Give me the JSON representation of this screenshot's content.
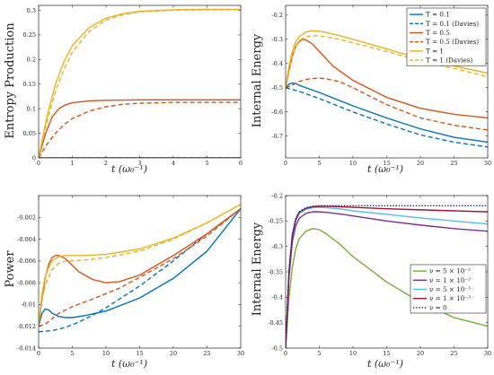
{
  "chart_data": [
    {
      "type": "line",
      "ylabel": "Entropy Production",
      "xlabel": "t (ω₀⁻¹)",
      "xlim": [
        0,
        6
      ],
      "ylim": [
        0,
        0.31
      ],
      "xticks": [
        0,
        1,
        2,
        3,
        4,
        5,
        6
      ],
      "xtick_labels": [
        "0",
        "1",
        "2",
        "3",
        "4",
        "5",
        "6"
      ],
      "yticks": [
        0,
        0.05,
        0.1,
        0.15,
        0.2,
        0.25,
        0.3
      ],
      "ytick_labels": [
        "0",
        "0.05",
        "0.1",
        "0.15",
        "0.2",
        "0.25",
        "0.3"
      ],
      "grid": false,
      "series": [
        {
          "color": "#0072bd",
          "dash": false,
          "x": [
            0,
            1,
            2,
            3,
            4,
            5,
            6
          ],
          "y": [
            0,
            0,
            0,
            0,
            0,
            0,
            0
          ]
        },
        {
          "color": "#0072bd",
          "dash": true,
          "x": [
            0,
            1,
            2,
            3,
            4,
            5,
            6
          ],
          "y": [
            0,
            0,
            0,
            0,
            0,
            0,
            0
          ]
        },
        {
          "color": "#d95319",
          "dash": false,
          "x": [
            0,
            0.2,
            0.4,
            0.6,
            0.8,
            1,
            1.5,
            2,
            3,
            4,
            5,
            6
          ],
          "y": [
            0,
            0.048,
            0.083,
            0.1,
            0.108,
            0.112,
            0.116,
            0.117,
            0.118,
            0.118,
            0.118,
            0.118
          ]
        },
        {
          "color": "#d95319",
          "dash": true,
          "x": [
            0,
            0.25,
            0.5,
            0.75,
            1,
            1.5,
            2,
            2.5,
            3,
            4,
            5,
            6
          ],
          "y": [
            0,
            0.028,
            0.05,
            0.067,
            0.08,
            0.095,
            0.104,
            0.109,
            0.111,
            0.113,
            0.113,
            0.113
          ]
        },
        {
          "color": "#edb120",
          "dash": false,
          "x": [
            0,
            0.25,
            0.5,
            0.75,
            1,
            1.5,
            2,
            2.5,
            3,
            4,
            5,
            6
          ],
          "y": [
            0,
            0.085,
            0.15,
            0.195,
            0.228,
            0.265,
            0.284,
            0.293,
            0.298,
            0.301,
            0.302,
            0.302
          ]
        },
        {
          "color": "#edb120",
          "dash": true,
          "x": [
            0,
            0.25,
            0.5,
            0.75,
            1,
            1.5,
            2,
            2.5,
            3,
            4,
            5,
            6
          ],
          "y": [
            0,
            0.075,
            0.135,
            0.18,
            0.215,
            0.257,
            0.28,
            0.291,
            0.297,
            0.3,
            0.301,
            0.301
          ]
        }
      ]
    },
    {
      "type": "line",
      "ylabel": "Internal Energy",
      "xlabel": "t (ω₀⁻¹)",
      "xlim": [
        0,
        30
      ],
      "ylim": [
        -0.79,
        -0.16
      ],
      "xticks": [
        0,
        5,
        10,
        15,
        20,
        25,
        30
      ],
      "xtick_labels": [
        "0",
        "5",
        "10",
        "15",
        "20",
        "25",
        "30"
      ],
      "yticks": [
        -0.7,
        -0.6,
        -0.5,
        -0.4,
        -0.3,
        -0.2
      ],
      "ytick_labels": [
        "-0.7",
        "-0.6",
        "-0.5",
        "-0.4",
        "-0.3",
        "-0.2"
      ],
      "grid": false,
      "legend": {
        "position": "top-right",
        "entries": [
          "T = 0.1",
          "T = 0.1 (Davies)",
          "T = 0.5",
          "T = 0.5 (Davies)",
          "T = 1",
          "T = 1 (Davies)"
        ]
      },
      "series": [
        {
          "name": "T = 0.1",
          "color": "#0072bd",
          "dash": false,
          "x": [
            0,
            0.5,
            1,
            1.5,
            2,
            3,
            5,
            10,
            15,
            20,
            25,
            30
          ],
          "y": [
            -0.5,
            -0.485,
            -0.481,
            -0.483,
            -0.49,
            -0.5,
            -0.52,
            -0.575,
            -0.625,
            -0.67,
            -0.705,
            -0.725
          ]
        },
        {
          "name": "T = 0.1 (Davies)",
          "color": "#0072bd",
          "dash": true,
          "x": [
            0,
            2,
            5,
            10,
            15,
            20,
            25,
            30
          ],
          "y": [
            -0.5,
            -0.515,
            -0.545,
            -0.6,
            -0.65,
            -0.695,
            -0.725,
            -0.745
          ]
        },
        {
          "name": "T = 0.5",
          "color": "#d95319",
          "dash": false,
          "x": [
            0,
            0.5,
            1,
            1.5,
            2,
            2.5,
            3,
            4,
            5,
            7,
            10,
            15,
            20,
            25,
            30
          ],
          "y": [
            -0.5,
            -0.43,
            -0.37,
            -0.33,
            -0.31,
            -0.3,
            -0.302,
            -0.32,
            -0.35,
            -0.41,
            -0.47,
            -0.54,
            -0.585,
            -0.61,
            -0.625
          ]
        },
        {
          "name": "T = 0.5 (Davies)",
          "color": "#d95319",
          "dash": true,
          "x": [
            0,
            1,
            2,
            3,
            4,
            5,
            6,
            8,
            10,
            15,
            20,
            25,
            30
          ],
          "y": [
            -0.5,
            -0.49,
            -0.475,
            -0.466,
            -0.462,
            -0.461,
            -0.463,
            -0.475,
            -0.5,
            -0.57,
            -0.625,
            -0.655,
            -0.675
          ]
        },
        {
          "name": "T = 1",
          "color": "#edb120",
          "dash": false,
          "x": [
            0,
            0.5,
            1,
            1.5,
            2,
            3,
            4,
            5,
            6,
            8,
            10,
            15,
            20,
            25,
            30
          ],
          "y": [
            -0.5,
            -0.41,
            -0.35,
            -0.31,
            -0.29,
            -0.27,
            -0.265,
            -0.267,
            -0.272,
            -0.285,
            -0.3,
            -0.34,
            -0.38,
            -0.41,
            -0.44
          ]
        },
        {
          "name": "T = 1 (Davies)",
          "color": "#edb120",
          "dash": true,
          "x": [
            0,
            0.5,
            1,
            1.5,
            2,
            3,
            4,
            5,
            6,
            8,
            10,
            15,
            20,
            25,
            30
          ],
          "y": [
            -0.5,
            -0.43,
            -0.37,
            -0.33,
            -0.305,
            -0.29,
            -0.285,
            -0.286,
            -0.29,
            -0.3,
            -0.315,
            -0.35,
            -0.39,
            -0.42,
            -0.455
          ]
        }
      ]
    },
    {
      "type": "line",
      "ylabel": "Power",
      "xlabel": "t (ω₀⁻¹)",
      "xlim": [
        0,
        30
      ],
      "ylim": [
        -0.014,
        0
      ],
      "xticks": [
        0,
        5,
        10,
        15,
        20,
        25,
        30
      ],
      "xtick_labels": [
        "0",
        "5",
        "10",
        "15",
        "20",
        "25",
        "30"
      ],
      "yticks": [
        -0.014,
        -0.012,
        -0.01,
        -0.008,
        -0.006,
        -0.004,
        -0.002
      ],
      "ytick_labels": [
        "-0.014",
        "-0.012",
        "-0.01",
        "-0.008",
        "-0.006",
        "-0.004",
        "-0.002"
      ],
      "grid": false,
      "series": [
        {
          "color": "#0072bd",
          "dash": false,
          "x": [
            0,
            0.5,
            1,
            1.5,
            2,
            3,
            4,
            5,
            7,
            10,
            15,
            20,
            25,
            30
          ],
          "y": [
            -0.012,
            -0.0108,
            -0.0104,
            -0.0105,
            -0.0108,
            -0.0111,
            -0.0112,
            -0.0112,
            -0.011,
            -0.0106,
            -0.0094,
            -0.0076,
            -0.0051,
            -0.0012
          ]
        },
        {
          "color": "#0072bd",
          "dash": true,
          "x": [
            0,
            2,
            4,
            6,
            8,
            10,
            15,
            20,
            25,
            30
          ],
          "y": [
            -0.0125,
            -0.0124,
            -0.0121,
            -0.0116,
            -0.011,
            -0.0103,
            -0.0083,
            -0.006,
            -0.0035,
            -0.0012
          ]
        },
        {
          "color": "#d95319",
          "dash": false,
          "x": [
            0,
            0.5,
            1,
            1.5,
            2,
            2.5,
            3,
            4,
            5,
            6,
            8,
            10,
            12,
            15,
            20,
            25,
            30
          ],
          "y": [
            -0.012,
            -0.0095,
            -0.0075,
            -0.0063,
            -0.0057,
            -0.0055,
            -0.0055,
            -0.0058,
            -0.0064,
            -0.007,
            -0.0077,
            -0.008,
            -0.0079,
            -0.0073,
            -0.0055,
            -0.0035,
            -0.0012
          ]
        },
        {
          "color": "#d95319",
          "dash": true,
          "x": [
            0,
            1,
            2,
            3,
            5,
            8,
            10,
            12,
            15,
            20,
            25,
            30
          ],
          "y": [
            -0.012,
            -0.0118,
            -0.0113,
            -0.0108,
            -0.0102,
            -0.0095,
            -0.009,
            -0.0085,
            -0.0075,
            -0.0058,
            -0.0037,
            -0.0012
          ]
        },
        {
          "color": "#edb120",
          "dash": false,
          "x": [
            0,
            0.5,
            1,
            1.5,
            2,
            3,
            4,
            5,
            7,
            10,
            15,
            20,
            25,
            30
          ],
          "y": [
            -0.012,
            -0.009,
            -0.0074,
            -0.0066,
            -0.006,
            -0.0056,
            -0.0055,
            -0.0055,
            -0.0055,
            -0.0054,
            -0.0049,
            -0.0039,
            -0.0025,
            -0.0008
          ]
        },
        {
          "color": "#edb120",
          "dash": true,
          "x": [
            0,
            0.5,
            1,
            1.5,
            2,
            3,
            4,
            5,
            7,
            10,
            15,
            20,
            25,
            30
          ],
          "y": [
            -0.012,
            -0.0095,
            -0.0082,
            -0.0075,
            -0.0068,
            -0.0062,
            -0.006,
            -0.006,
            -0.0059,
            -0.0057,
            -0.0051,
            -0.004,
            -0.0025,
            -0.0008
          ]
        }
      ]
    },
    {
      "type": "line",
      "ylabel": "Internal Energy",
      "xlabel": "t (ω₀⁻¹)",
      "xlim": [
        0,
        30
      ],
      "ylim": [
        -0.5,
        -0.2
      ],
      "xticks": [
        0,
        5,
        10,
        15,
        20,
        25,
        30
      ],
      "xtick_labels": [
        "0",
        "5",
        "10",
        "15",
        "20",
        "25",
        "30"
      ],
      "yticks": [
        -0.5,
        -0.45,
        -0.4,
        -0.35,
        -0.3,
        -0.25,
        -0.2
      ],
      "ytick_labels": [
        "-0.5",
        "-0.45",
        "-0.4",
        "-0.35",
        "-0.3",
        "-0.25",
        "-0.2"
      ],
      "grid": false,
      "legend": {
        "position": "bottom-right",
        "entries": [
          "ν = 5 × 10⁻²",
          "ν = 1 × 10⁻²",
          "ν = 5 × 10⁻³",
          "ν = 1 × 10⁻³",
          "ν = 0"
        ]
      },
      "series": [
        {
          "name": "ν = 5 × 10⁻²",
          "color": "#77ac30",
          "dash": false,
          "x": [
            0,
            0.5,
            1,
            1.5,
            2,
            3,
            4,
            5,
            6,
            8,
            10,
            15,
            20,
            25,
            30
          ],
          "y": [
            -0.5,
            -0.4,
            -0.34,
            -0.305,
            -0.285,
            -0.27,
            -0.265,
            -0.267,
            -0.275,
            -0.295,
            -0.32,
            -0.37,
            -0.41,
            -0.44,
            -0.457
          ]
        },
        {
          "name": "ν = 1 × 10⁻²",
          "color": "#7e2f8e",
          "dash": false,
          "x": [
            0,
            0.5,
            1,
            1.5,
            2,
            3,
            4,
            5,
            6,
            8,
            10,
            15,
            20,
            25,
            30
          ],
          "y": [
            -0.5,
            -0.36,
            -0.29,
            -0.26,
            -0.245,
            -0.235,
            -0.232,
            -0.232,
            -0.233,
            -0.236,
            -0.24,
            -0.25,
            -0.258,
            -0.265,
            -0.27
          ]
        },
        {
          "name": "ν = 5 × 10⁻³",
          "color": "#4dbeee",
          "dash": false,
          "x": [
            0,
            0.5,
            1,
            1.5,
            2,
            3,
            4,
            5,
            6,
            8,
            10,
            15,
            20,
            25,
            30
          ],
          "y": [
            -0.5,
            -0.35,
            -0.28,
            -0.25,
            -0.236,
            -0.227,
            -0.224,
            -0.223,
            -0.224,
            -0.226,
            -0.23,
            -0.237,
            -0.244,
            -0.25,
            -0.256
          ]
        },
        {
          "name": "ν = 1 × 10⁻³",
          "color": "#a2142f",
          "dash": false,
          "x": [
            0,
            0.5,
            1,
            1.5,
            2,
            3,
            4,
            5,
            6,
            8,
            10,
            15,
            20,
            25,
            30
          ],
          "y": [
            -0.5,
            -0.35,
            -0.277,
            -0.247,
            -0.233,
            -0.225,
            -0.222,
            -0.221,
            -0.221,
            -0.222,
            -0.223,
            -0.226,
            -0.228,
            -0.23,
            -0.232
          ]
        },
        {
          "name": "ν = 0",
          "color": "#1a1a9a",
          "dash": "dotted",
          "x": [
            0,
            0.5,
            1,
            1.5,
            2,
            3,
            4,
            5,
            6,
            8,
            10,
            15,
            20,
            25,
            30
          ],
          "y": [
            -0.5,
            -0.35,
            -0.276,
            -0.246,
            -0.232,
            -0.224,
            -0.221,
            -0.22,
            -0.22,
            -0.22,
            -0.22,
            -0.22,
            -0.22,
            -0.22,
            -0.22
          ]
        }
      ]
    }
  ]
}
